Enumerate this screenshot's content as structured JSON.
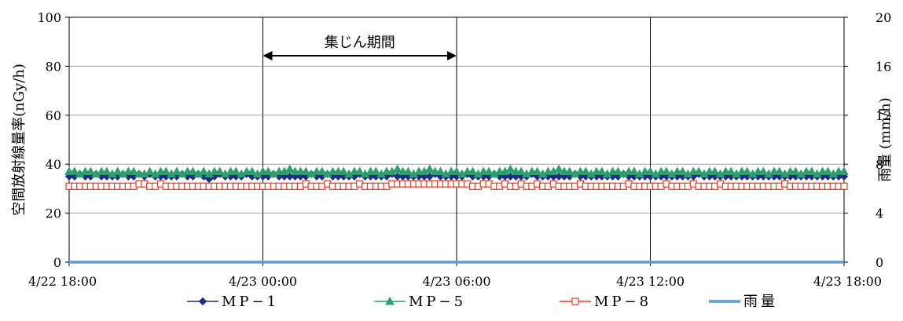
{
  "chart_data": {
    "type": "line",
    "x_ticks": [
      "4/22 18:00",
      "4/23 00:00",
      "4/23 06:00",
      "4/23 12:00",
      "4/23 18:00"
    ],
    "x_range": [
      "4/22 18:00",
      "4/23 18:00"
    ],
    "x_step_minutes": 10,
    "ylabel_left": "空間放射線量率(nGy/h)",
    "ylabel_right": "雨量 (mm/h)",
    "ylim_left": [
      0,
      100
    ],
    "ylim_right": [
      0,
      20
    ],
    "yticks_left": [
      "0",
      "20",
      "40",
      "60",
      "80",
      "100"
    ],
    "yticks_right": [
      "0",
      "4",
      "8",
      "12",
      "16",
      "20"
    ],
    "grid": "horizontal-and-vertical",
    "legend_position": "bottom",
    "annotation": {
      "text": "集じん期間",
      "start": "4/23 00:00",
      "end": "4/23 06:00"
    },
    "series": [
      {
        "name": "MP−1",
        "color": "#1f2d86",
        "marker": "diamond",
        "axis": "left",
        "values": [
          35,
          35,
          36,
          35,
          35,
          36,
          35,
          35,
          35,
          35,
          36,
          35,
          35,
          36,
          35,
          36,
          35,
          35,
          35,
          35,
          35,
          36,
          35,
          35,
          36,
          35,
          34,
          35,
          36,
          35,
          35,
          35,
          35,
          36,
          35,
          35,
          35,
          35,
          36,
          35,
          35,
          35,
          35,
          35,
          35,
          36,
          35,
          35,
          36,
          35,
          35,
          35,
          35,
          35,
          36,
          35,
          35,
          35,
          35,
          35,
          36,
          35,
          35,
          35,
          35,
          35,
          35,
          35,
          36,
          35,
          35,
          35,
          35,
          35,
          36,
          35,
          35,
          35,
          35,
          36,
          35,
          35,
          35,
          35,
          35,
          35,
          36,
          35,
          35,
          35,
          35,
          35,
          35,
          35,
          36,
          35,
          35,
          35,
          35,
          35,
          35,
          35,
          35,
          36,
          35,
          35,
          35,
          35,
          35,
          35,
          35,
          35,
          35,
          35,
          35,
          35,
          35,
          36,
          35,
          35,
          35,
          35,
          35,
          35,
          35,
          35,
          35,
          35,
          35,
          35,
          35,
          35,
          35,
          35,
          35,
          35,
          35,
          35,
          35,
          35,
          35,
          35,
          35,
          35,
          35
        ]
      },
      {
        "name": "MP−5",
        "color": "#2e9e6e",
        "marker": "triangle",
        "axis": "left",
        "values": [
          37,
          37,
          36,
          37,
          37,
          36,
          37,
          37,
          36,
          37,
          36,
          37,
          37,
          36,
          36,
          37,
          36,
          37,
          37,
          36,
          37,
          36,
          37,
          37,
          36,
          37,
          36,
          37,
          37,
          36,
          37,
          37,
          36,
          37,
          37,
          36,
          37,
          37,
          36,
          37,
          37,
          38,
          37,
          37,
          37,
          36,
          37,
          37,
          36,
          37,
          37,
          37,
          36,
          37,
          37,
          36,
          37,
          37,
          36,
          37,
          37,
          38,
          37,
          37,
          36,
          37,
          37,
          38,
          37,
          37,
          36,
          37,
          37,
          36,
          37,
          37,
          36,
          37,
          37,
          36,
          37,
          37,
          38,
          37,
          37,
          36,
          37,
          37,
          36,
          37,
          37,
          38,
          37,
          37,
          36,
          37,
          37,
          36,
          37,
          37,
          36,
          37,
          37,
          36,
          37,
          37,
          36,
          37,
          37,
          36,
          37,
          37,
          36,
          37,
          37,
          36,
          37,
          37,
          36,
          37,
          37,
          36,
          37,
          37,
          36,
          37,
          37,
          36,
          37,
          37,
          36,
          37,
          37,
          36,
          37,
          37,
          36,
          37,
          37,
          36,
          37,
          37,
          36,
          37,
          37
        ]
      },
      {
        "name": "MP−8",
        "color": "#e83a2a",
        "marker": "square-open",
        "axis": "left",
        "values": [
          31,
          31,
          31,
          31,
          31,
          31,
          31,
          31,
          31,
          31,
          31,
          31,
          31,
          32,
          32,
          31,
          31,
          32,
          31,
          31,
          31,
          31,
          31,
          31,
          31,
          31,
          31,
          31,
          31,
          31,
          31,
          31,
          31,
          31,
          31,
          31,
          31,
          31,
          31,
          31,
          31,
          31,
          31,
          31,
          32,
          31,
          31,
          31,
          32,
          31,
          31,
          31,
          31,
          31,
          32,
          31,
          31,
          31,
          31,
          31,
          32,
          32,
          32,
          32,
          32,
          32,
          32,
          32,
          32,
          32,
          32,
          32,
          32,
          32,
          32,
          31,
          31,
          32,
          32,
          31,
          31,
          32,
          31,
          31,
          32,
          31,
          31,
          32,
          31,
          31,
          32,
          31,
          31,
          31,
          31,
          32,
          31,
          31,
          31,
          31,
          31,
          31,
          31,
          31,
          32,
          31,
          31,
          31,
          31,
          31,
          31,
          32,
          31,
          31,
          31,
          31,
          32,
          31,
          31,
          31,
          31,
          32,
          31,
          31,
          31,
          31,
          31,
          31,
          31,
          31,
          31,
          31,
          31,
          32,
          31,
          31,
          31,
          31,
          31,
          31,
          31,
          31,
          31,
          31,
          31
        ]
      },
      {
        "name": "雨量",
        "color": "#5b9bd5",
        "marker": "none",
        "axis": "right",
        "values": [
          0,
          0,
          0,
          0,
          0,
          0,
          0,
          0,
          0,
          0,
          0,
          0,
          0,
          0,
          0,
          0,
          0,
          0,
          0,
          0,
          0,
          0,
          0,
          0,
          0,
          0,
          0,
          0,
          0,
          0,
          0,
          0,
          0,
          0,
          0,
          0,
          0,
          0,
          0,
          0,
          0,
          0,
          0,
          0,
          0,
          0,
          0,
          0,
          0,
          0,
          0,
          0,
          0,
          0,
          0,
          0,
          0,
          0,
          0,
          0,
          0,
          0,
          0,
          0,
          0,
          0,
          0,
          0,
          0,
          0,
          0,
          0,
          0,
          0,
          0,
          0,
          0,
          0,
          0,
          0,
          0,
          0,
          0,
          0,
          0,
          0,
          0,
          0,
          0,
          0,
          0,
          0,
          0,
          0,
          0,
          0,
          0,
          0,
          0,
          0,
          0,
          0,
          0,
          0,
          0,
          0,
          0,
          0,
          0,
          0,
          0,
          0,
          0,
          0,
          0,
          0,
          0,
          0,
          0,
          0,
          0,
          0,
          0,
          0,
          0,
          0,
          0,
          0,
          0,
          0,
          0,
          0,
          0,
          0,
          0,
          0,
          0,
          0,
          0,
          0,
          0,
          0,
          0,
          0,
          0
        ]
      }
    ]
  }
}
